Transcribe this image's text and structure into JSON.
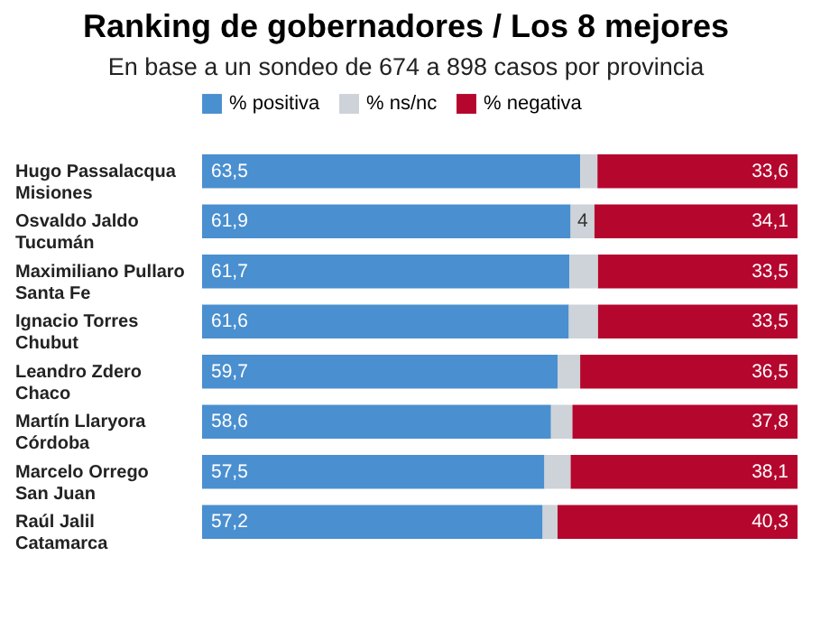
{
  "chart_data": {
    "type": "bar",
    "orientation": "horizontal",
    "stacked": true,
    "title": "Ranking de gobernadores / Los 8 mejores",
    "subtitle": "En base a un sondeo de 674 a 898 casos por provincia",
    "categories": [
      "Hugo Passalacqua\nMisiones",
      "Osvaldo Jaldo\nTucumán",
      "Maximiliano Pullaro\nSanta Fe",
      "Ignacio Torres\nChubut",
      "Leandro Zdero\nChaco",
      "Martín Llaryora\nCórdoba",
      "Marcelo Orrego\nSan Juan",
      "Raúl Jalil\nCatamarca"
    ],
    "xlim": [
      0,
      100
    ],
    "legend": "top",
    "grid": false,
    "series": [
      {
        "name": "% positiva",
        "color": "#4a8fd0",
        "values": [
          63.5,
          61.9,
          61.7,
          61.6,
          59.7,
          58.6,
          57.5,
          57.2
        ],
        "value_labels": [
          "63,5",
          "61,9",
          "61,7",
          "61,6",
          "59,7",
          "58,6",
          "57,5",
          "57,2"
        ]
      },
      {
        "name": "% ns/nc",
        "color": "#cdd3d8",
        "values": [
          2.9,
          4,
          4.8,
          4.9,
          3.8,
          3.6,
          4.4,
          2.5
        ],
        "value_labels": [
          null,
          "4",
          null,
          null,
          null,
          null,
          null,
          null
        ]
      },
      {
        "name": "% negativa",
        "color": "#b5062e",
        "values": [
          33.6,
          34.1,
          33.5,
          33.5,
          36.5,
          37.8,
          38.1,
          40.3
        ],
        "value_labels": [
          "33,6",
          "34,1",
          "33,5",
          "33,5",
          "36,5",
          "37,8",
          "38,1",
          "40,3"
        ]
      }
    ]
  }
}
